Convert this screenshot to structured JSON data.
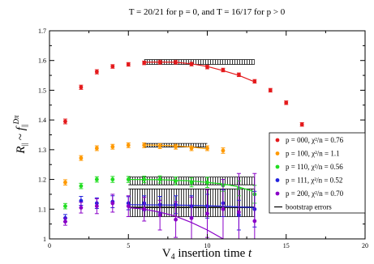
{
  "chart_data": {
    "type": "scatter",
    "title": "T = 20/21 for p = 0, and T = 16/17 for p > 0",
    "xlabel": "V4 insertion time t",
    "ylabel": "R|| ~ f||Dπ",
    "xlim": [
      0,
      20
    ],
    "ylim": [
      1.0,
      1.7
    ],
    "x_ticks": [
      0,
      5,
      10,
      15,
      20
    ],
    "y_ticks": [
      1.0,
      1.1,
      1.2,
      1.3,
      1.4,
      1.5,
      1.6,
      1.7
    ],
    "x_tick_labels": [
      "0",
      "5",
      "10",
      "15",
      "20"
    ],
    "y_tick_labels": [
      "1",
      "1.1",
      "1.2",
      "1.3",
      "1.4",
      "1.5",
      "1.6",
      "1.7"
    ],
    "grid": false,
    "legend_position": "bottom-right",
    "series": [
      {
        "name": "p = 000, χ²/n = 0.76",
        "color": "#e41a1c",
        "x": [
          1,
          2,
          3,
          4,
          5,
          6,
          7,
          8,
          9,
          10,
          11,
          12,
          13,
          14,
          15,
          16
        ],
        "y": [
          1.395,
          1.51,
          1.562,
          1.58,
          1.587,
          1.592,
          1.594,
          1.594,
          1.588,
          1.578,
          1.568,
          1.552,
          1.53,
          1.5,
          1.458,
          1.385
        ],
        "err": [
          0.008,
          0.007,
          0.007,
          0.006,
          0.006,
          0.006,
          0.006,
          0.006,
          0.006,
          0.006,
          0.006,
          0.006,
          0.006,
          0.006,
          0.006,
          0.006
        ],
        "fit": {
          "x_range": [
            6,
            13
          ],
          "points": [
            [
              6,
              1.594
            ],
            [
              7,
              1.595
            ],
            [
              8,
              1.594
            ],
            [
              9,
              1.589
            ],
            [
              10,
              1.58
            ],
            [
              11,
              1.566
            ],
            [
              12,
              1.55
            ],
            [
              13,
              1.528
            ]
          ]
        },
        "band": {
          "x_range": [
            6,
            13
          ],
          "center": 1.595,
          "half_width": 0.008
        }
      },
      {
        "name": "p = 100, χ²/n = 1.1",
        "color": "#ff9900",
        "x": [
          1,
          2,
          3,
          4,
          5,
          6,
          7,
          8,
          9,
          10,
          11
        ],
        "y": [
          1.19,
          1.272,
          1.305,
          1.31,
          1.315,
          1.315,
          1.312,
          1.31,
          1.305,
          1.305,
          1.297
        ],
        "err": [
          0.009,
          0.008,
          0.008,
          0.008,
          0.008,
          0.008,
          0.008,
          0.008,
          0.008,
          0.008,
          0.009
        ],
        "fit": {
          "x_range": [
            6,
            10
          ],
          "points": [
            [
              6,
              1.316
            ],
            [
              7,
              1.315
            ],
            [
              8,
              1.313
            ],
            [
              9,
              1.309
            ],
            [
              10,
              1.303
            ]
          ]
        },
        "band": {
          "x_range": [
            6,
            10
          ],
          "center": 1.315,
          "half_width": 0.006
        }
      },
      {
        "name": "p = 110, χ²/n = 0.56",
        "color": "#22dd22",
        "x": [
          1,
          2,
          3,
          4,
          5,
          6,
          7,
          8,
          9,
          10,
          11,
          12,
          13
        ],
        "y": [
          1.11,
          1.178,
          1.2,
          1.2,
          1.2,
          1.2,
          1.2,
          1.195,
          1.19,
          1.19,
          1.18,
          1.17,
          1.15
        ],
        "err": [
          0.009,
          0.009,
          0.009,
          0.01,
          0.01,
          0.011,
          0.012,
          0.013,
          0.015,
          0.017,
          0.02,
          0.025,
          0.03
        ],
        "fit": {
          "x_range": [
            5,
            13
          ],
          "points": [
            [
              5,
              1.2
            ],
            [
              7,
              1.199
            ],
            [
              9,
              1.195
            ],
            [
              11,
              1.185
            ],
            [
              12,
              1.175
            ],
            [
              13,
              1.158
            ]
          ]
        },
        "band": {
          "x_range": [
            5,
            13
          ],
          "center": 1.195,
          "half_width": 0.013
        }
      },
      {
        "name": "p = 111, χ²/n = 0.52",
        "color": "#2222dd",
        "x": [
          1,
          2,
          3,
          4,
          5,
          6,
          7,
          8,
          9,
          10,
          11,
          12,
          13
        ],
        "y": [
          1.07,
          1.128,
          1.12,
          1.125,
          1.12,
          1.12,
          1.115,
          1.115,
          1.11,
          1.11,
          1.12,
          1.08,
          1.1
        ],
        "err": [
          0.012,
          0.015,
          0.018,
          0.02,
          0.022,
          0.025,
          0.028,
          0.03,
          0.035,
          0.04,
          0.045,
          0.05,
          0.06
        ],
        "fit": {
          "x_range": [
            5,
            13
          ],
          "points": [
            [
              5,
              1.115
            ],
            [
              7,
              1.114
            ],
            [
              9,
              1.113
            ],
            [
              11,
              1.11
            ],
            [
              13,
              1.105
            ]
          ]
        },
        "band": {
          "x_range": [
            5,
            13
          ],
          "center": 1.138,
          "half_width": 0.03
        }
      },
      {
        "name": "p = 200, χ²/n = 0.70",
        "color": "#8a00c8",
        "x": [
          1,
          2,
          3,
          4,
          5,
          6,
          7,
          8,
          9,
          10,
          11,
          12,
          13
        ],
        "y": [
          1.058,
          1.105,
          1.11,
          1.12,
          1.11,
          1.1,
          1.08,
          1.065,
          1.07,
          1.085,
          1.1,
          1.09,
          1.06
        ],
        "err": [
          0.012,
          0.018,
          0.025,
          0.03,
          0.035,
          0.04,
          0.05,
          0.06,
          0.07,
          0.08,
          0.1,
          0.13,
          0.16
        ],
        "fit": {
          "x_range": [
            5,
            11.5
          ],
          "points": [
            [
              5,
              1.105
            ],
            [
              6,
              1.1
            ],
            [
              7,
              1.09
            ],
            [
              8,
              1.076
            ],
            [
              9,
              1.055
            ],
            [
              10,
              1.03
            ],
            [
              11,
              1.0
            ]
          ]
        },
        "band": {
          "x_range": [
            5,
            13
          ],
          "center": 1.09,
          "half_width": 0.015
        }
      }
    ],
    "bootstrap_label": "bootstrap errors"
  }
}
